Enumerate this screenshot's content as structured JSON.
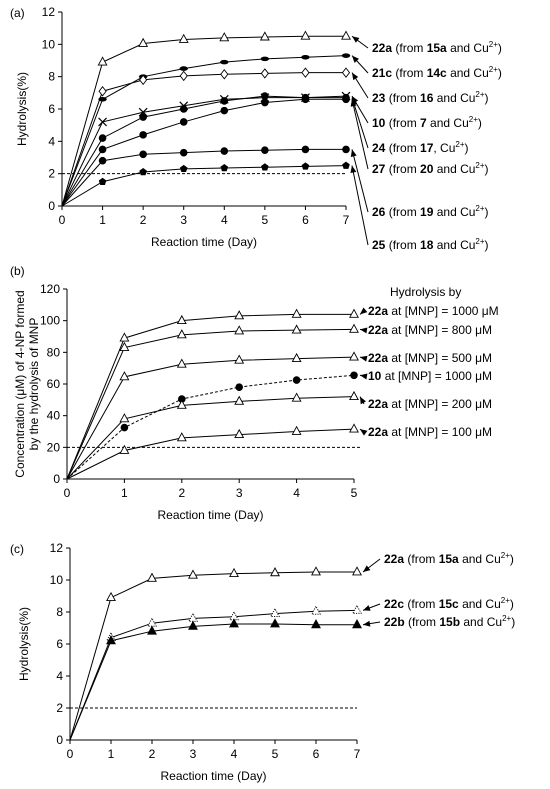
{
  "chart_data": [
    {
      "type": "line",
      "panel_label": "(a)",
      "xlabel": "Reaction time (Day)",
      "ylabel": "Hydrolysis(%)",
      "xlim": [
        0,
        7
      ],
      "ylim": [
        0,
        12
      ],
      "xticks": [
        0,
        1,
        2,
        3,
        4,
        5,
        6,
        7
      ],
      "yticks": [
        0,
        2,
        4,
        6,
        8,
        10,
        12
      ],
      "reference_line": {
        "y": 2,
        "style": "dashed"
      },
      "series": [
        {
          "marker": "open-triangle",
          "x": [
            0,
            1,
            2,
            3,
            4,
            5,
            6,
            7
          ],
          "values": [
            0,
            8.9,
            10.05,
            10.3,
            10.4,
            10.45,
            10.5,
            10.5
          ],
          "annotation": [
            {
              "t": "22a",
              "b": true
            },
            {
              "t": " (from "
            },
            {
              "t": "15a",
              "b": true
            },
            {
              "t": " and Cu"
            },
            {
              "t": "2+",
              "sup": true
            },
            {
              "t": ")"
            }
          ]
        },
        {
          "marker": "dash",
          "x": [
            0,
            1,
            2,
            3,
            4,
            5,
            6,
            7
          ],
          "values": [
            0,
            6.6,
            8.0,
            8.5,
            8.9,
            9.1,
            9.2,
            9.3
          ],
          "annotation": [
            {
              "t": "21c",
              "b": true
            },
            {
              "t": " (from "
            },
            {
              "t": "14c",
              "b": true
            },
            {
              "t": " and Cu"
            },
            {
              "t": "2+",
              "sup": true
            },
            {
              "t": ")"
            }
          ]
        },
        {
          "marker": "open-diamond",
          "x": [
            0,
            1,
            2,
            3,
            4,
            5,
            6,
            7
          ],
          "values": [
            0,
            7.1,
            7.8,
            8.05,
            8.15,
            8.2,
            8.25,
            8.25
          ],
          "annotation": [
            {
              "t": "23",
              "b": true
            },
            {
              "t": " (from "
            },
            {
              "t": "16",
              "b": true
            },
            {
              "t": " and Cu"
            },
            {
              "t": "2+",
              "sup": true
            },
            {
              "t": ")"
            }
          ]
        },
        {
          "marker": "cross",
          "x": [
            0,
            1,
            2,
            3,
            4,
            5,
            6,
            7
          ],
          "values": [
            0,
            5.2,
            5.8,
            6.2,
            6.6,
            6.7,
            6.7,
            6.8
          ],
          "annotation": [
            {
              "t": "10",
              "b": true
            },
            {
              "t": " (from "
            },
            {
              "t": "7",
              "b": true
            },
            {
              "t": " and Cu"
            },
            {
              "t": "2+",
              "sup": true
            },
            {
              "t": ")"
            }
          ]
        },
        {
          "marker": "filled-circle",
          "x": [
            0,
            1,
            2,
            3,
            4,
            5,
            6,
            7
          ],
          "values": [
            0,
            4.2,
            5.5,
            6.0,
            6.5,
            6.8,
            6.7,
            6.7
          ],
          "annotation": [
            {
              "t": "24",
              "b": true
            },
            {
              "t": " (from "
            },
            {
              "t": "17",
              "b": true
            },
            {
              "t": ", Cu"
            },
            {
              "t": "2+",
              "sup": true
            },
            {
              "t": ")"
            }
          ]
        },
        {
          "marker": "filled-circle",
          "x": [
            0,
            1,
            2,
            3,
            4,
            5,
            6,
            7
          ],
          "values": [
            0,
            3.5,
            4.4,
            5.2,
            5.9,
            6.4,
            6.6,
            6.6
          ],
          "annotation": [
            {
              "t": "27",
              "b": true
            },
            {
              "t": " (from "
            },
            {
              "t": "20",
              "b": true
            },
            {
              "t": " and Cu"
            },
            {
              "t": "2+",
              "sup": true
            },
            {
              "t": ")"
            }
          ]
        },
        {
          "marker": "filled-circle",
          "x": [
            0,
            1,
            2,
            3,
            4,
            5,
            6,
            7
          ],
          "values": [
            0,
            2.8,
            3.2,
            3.3,
            3.4,
            3.45,
            3.5,
            3.5
          ],
          "annotation": [
            {
              "t": "26",
              "b": true
            },
            {
              "t": " (from "
            },
            {
              "t": "19",
              "b": true
            },
            {
              "t": " and Cu"
            },
            {
              "t": "2+",
              "sup": true
            },
            {
              "t": ")"
            }
          ]
        },
        {
          "marker": "filled-pentagon",
          "x": [
            0,
            1,
            2,
            3,
            4,
            5,
            6,
            7
          ],
          "values": [
            0,
            1.5,
            2.1,
            2.3,
            2.35,
            2.4,
            2.45,
            2.5
          ],
          "annotation": [
            {
              "t": "25",
              "b": true
            },
            {
              "t": " (from "
            },
            {
              "t": "18",
              "b": true
            },
            {
              "t": " and Cu"
            },
            {
              "t": "2+",
              "sup": true
            },
            {
              "t": ")"
            }
          ]
        }
      ]
    },
    {
      "type": "line",
      "panel_label": "(b)",
      "xlabel": "Reaction time (Day)",
      "ylabel": "Concentration (μM) of 4-NP formed",
      "ylabel2": "by the hydrolysis of MNP",
      "xlim": [
        0,
        5
      ],
      "ylim": [
        0,
        120
      ],
      "xticks": [
        0,
        1,
        2,
        3,
        4,
        5
      ],
      "yticks": [
        0,
        20,
        40,
        60,
        80,
        100,
        120
      ],
      "reference_line": {
        "y": 20,
        "style": "dashed"
      },
      "legend_title": "Hydrolysis by",
      "series": [
        {
          "marker": "open-triangle",
          "x": [
            0,
            1,
            2,
            3,
            4,
            5
          ],
          "values": [
            0,
            89,
            100,
            103,
            104,
            104
          ],
          "annotation": [
            {
              "t": "22a",
              "b": true
            },
            {
              "t": " at [MNP] = 1000 μM"
            }
          ]
        },
        {
          "marker": "open-triangle",
          "x": [
            0,
            1,
            2,
            3,
            4,
            5
          ],
          "values": [
            0,
            83,
            91,
            93.5,
            94,
            94.5
          ],
          "annotation": [
            {
              "t": "22a",
              "b": true
            },
            {
              "t": " at [MNP] = 800 μM"
            }
          ]
        },
        {
          "marker": "open-triangle",
          "x": [
            0,
            1,
            2,
            3,
            4,
            5
          ],
          "values": [
            0,
            64.5,
            72.5,
            75,
            76,
            77
          ],
          "annotation": [
            {
              "t": "22a",
              "b": true
            },
            {
              "t": " at [MNP] = 500 μM"
            }
          ]
        },
        {
          "marker": "filled-circle",
          "dashed": true,
          "x": [
            0,
            1,
            2,
            3,
            4,
            5
          ],
          "values": [
            0,
            32.5,
            50.5,
            58,
            62.5,
            65.5
          ],
          "annotation": [
            {
              "t": "10",
              "b": true
            },
            {
              "t": " at [MNP] = 1000 μM"
            }
          ]
        },
        {
          "marker": "open-triangle",
          "x": [
            0,
            1,
            2,
            3,
            4,
            5
          ],
          "values": [
            0,
            38,
            46.5,
            49,
            51,
            52
          ],
          "annotation": [
            {
              "t": "22a",
              "b": true
            },
            {
              "t": " at [MNP] = 200 μM"
            }
          ]
        },
        {
          "marker": "open-triangle",
          "x": [
            0,
            1,
            2,
            3,
            4,
            5
          ],
          "values": [
            0,
            18,
            26,
            28,
            30,
            31.5
          ],
          "annotation": [
            {
              "t": "22a",
              "b": true
            },
            {
              "t": " at [MNP] = 100 μM"
            }
          ]
        }
      ]
    },
    {
      "type": "line",
      "panel_label": "(c)",
      "xlabel": "Reaction time (Day)",
      "ylabel": "Hydrolysis(%)",
      "xlim": [
        0,
        7
      ],
      "ylim": [
        0,
        12
      ],
      "xticks": [
        0,
        1,
        2,
        3,
        4,
        5,
        6,
        7
      ],
      "yticks": [
        0,
        2,
        4,
        6,
        8,
        10,
        12
      ],
      "reference_line": {
        "y": 2,
        "style": "dashed"
      },
      "series": [
        {
          "marker": "open-triangle",
          "x": [
            0,
            1,
            2,
            3,
            4,
            5,
            6,
            7
          ],
          "values": [
            0,
            8.9,
            10.1,
            10.3,
            10.4,
            10.45,
            10.5,
            10.5
          ],
          "annotation": [
            {
              "t": "22a",
              "b": true
            },
            {
              "t": " (from "
            },
            {
              "t": "15a",
              "b": true
            },
            {
              "t": " and Cu"
            },
            {
              "t": "2+",
              "sup": true
            },
            {
              "t": ")"
            }
          ]
        },
        {
          "marker": "dotted-triangle",
          "x": [
            0,
            1,
            2,
            3,
            4,
            5,
            6,
            7
          ],
          "values": [
            0,
            6.4,
            7.3,
            7.6,
            7.7,
            7.9,
            8.05,
            8.1
          ],
          "annotation": [
            {
              "t": "22c",
              "b": true
            },
            {
              "t": " (from "
            },
            {
              "t": "15c",
              "b": true
            },
            {
              "t": " and Cu"
            },
            {
              "t": "2+",
              "sup": true
            },
            {
              "t": ")"
            }
          ]
        },
        {
          "marker": "filled-triangle",
          "x": [
            0,
            1,
            2,
            3,
            4,
            5,
            6,
            7
          ],
          "values": [
            0,
            6.2,
            6.8,
            7.1,
            7.25,
            7.25,
            7.2,
            7.2
          ],
          "annotation": [
            {
              "t": "22b",
              "b": true
            },
            {
              "t": " (from "
            },
            {
              "t": "15b",
              "b": true
            },
            {
              "t": " and Cu"
            },
            {
              "t": "2+",
              "sup": true
            },
            {
              "t": ")"
            }
          ]
        }
      ]
    }
  ]
}
